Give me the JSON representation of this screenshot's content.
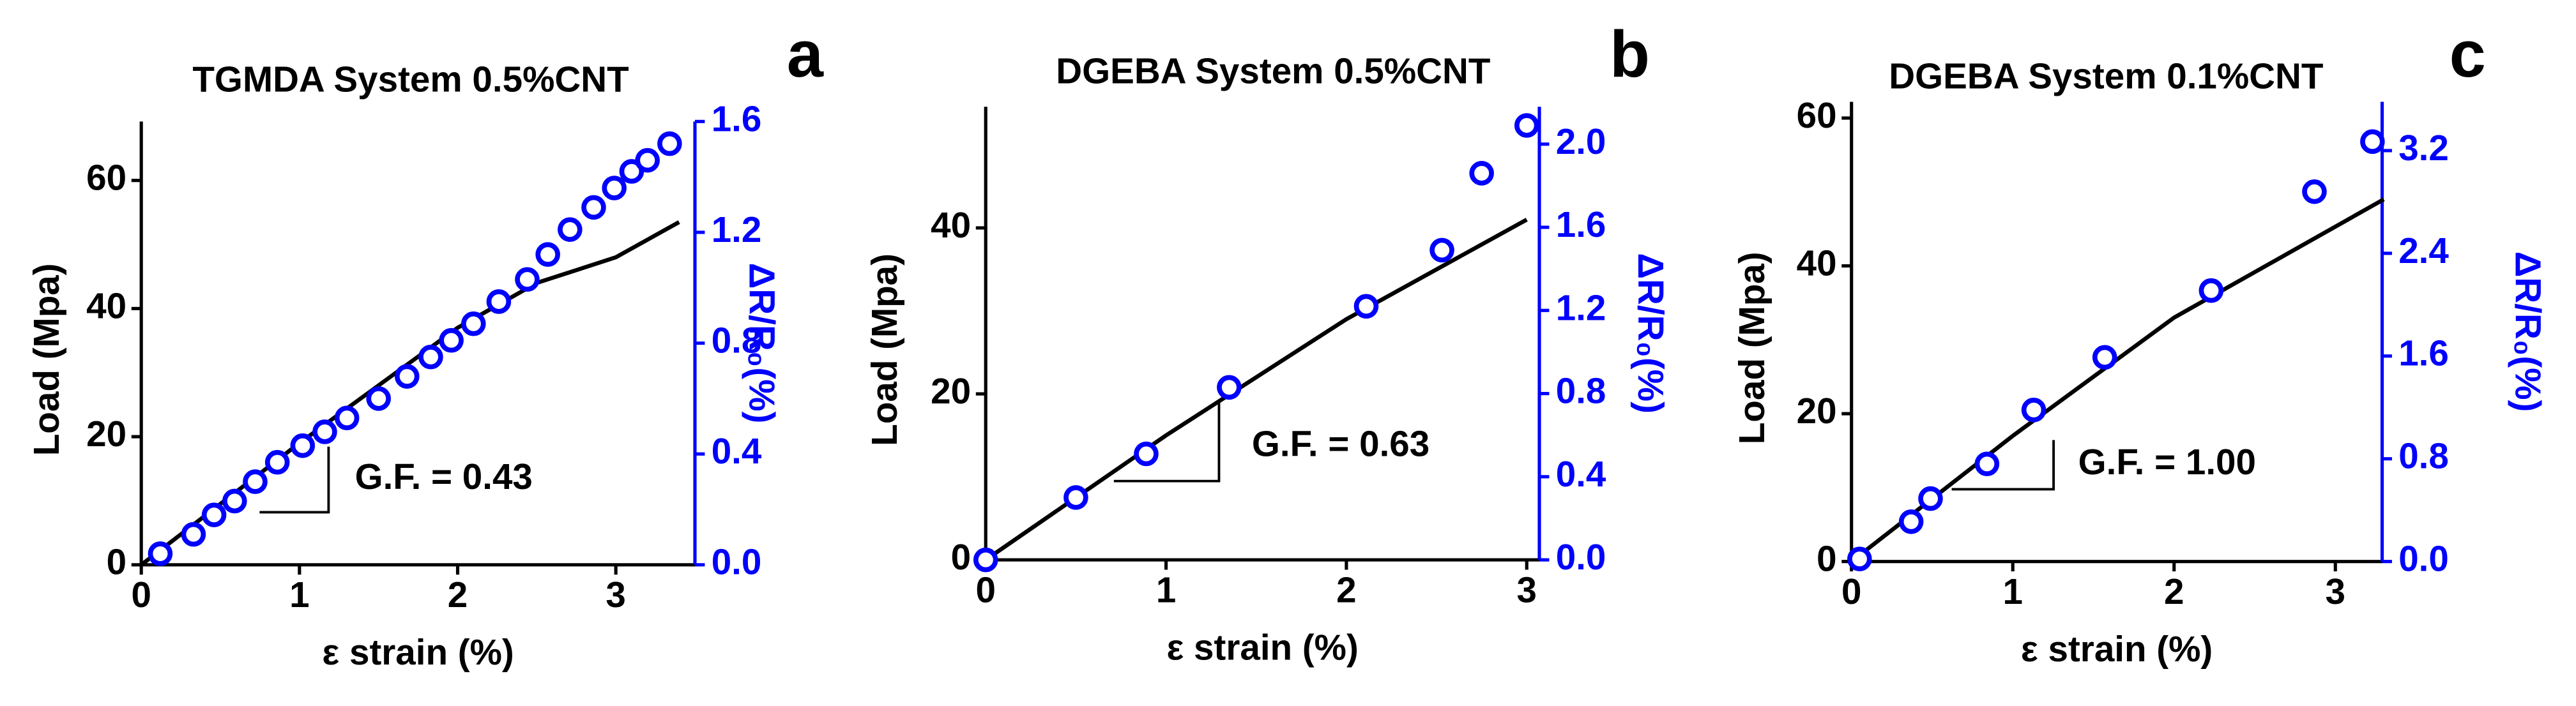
{
  "chart_data": [
    {
      "type": "line",
      "title": "TGMDA System 0.5%CNT",
      "panel_label": "a",
      "xlabel": "ε strain (%)",
      "ylabel": "Load (Mpa)",
      "y2label": "ΔR/R₀(%)",
      "annotation": "G.F. = 0.43",
      "xlim": [
        0,
        3.5
      ],
      "xticks": [
        0,
        1,
        2,
        3
      ],
      "ylim": [
        0,
        69.2
      ],
      "yticks": [
        0,
        20,
        40,
        60
      ],
      "y2lim": [
        0,
        1.6
      ],
      "y2ticks": [
        {
          "value": 0,
          "label": "0.0"
        },
        {
          "value": 0.4,
          "label": "0.4"
        },
        {
          "value": 0.8,
          "label": "0.8"
        },
        {
          "value": 1.2,
          "label": "1.2"
        },
        {
          "value": 1.6,
          "label": "1.6"
        }
      ],
      "series": [
        {
          "color": "#000000",
          "x": [
            0,
            0.5,
            1,
            1.5,
            2,
            2.5,
            3,
            3.4
          ],
          "values": [
            0,
            9.5,
            19,
            28,
            37,
            44,
            48,
            53.5
          ]
        },
        {
          "color": "#0000ff",
          "axis": "y2",
          "marker": "circle",
          "x": [
            0.12,
            0.33,
            0.46,
            0.59,
            0.72,
            0.86,
            1.02,
            1.16,
            1.3,
            1.5,
            1.68,
            1.83,
            1.96,
            2.1,
            2.26,
            2.44,
            2.57,
            2.71,
            2.86,
            2.99,
            3.1,
            3.2,
            3.34
          ],
          "values": [
            0.04,
            0.11,
            0.18,
            0.23,
            0.3,
            0.37,
            0.43,
            0.48,
            0.53,
            0.6,
            0.68,
            0.75,
            0.81,
            0.87,
            0.95,
            1.03,
            1.12,
            1.21,
            1.29,
            1.36,
            1.42,
            1.46,
            1.52
          ]
        }
      ]
    },
    {
      "type": "line",
      "title": "DGEBA System 0.5%CNT",
      "panel_label": "b",
      "xlabel": "ε strain (%)",
      "ylabel": "Load (Mpa)",
      "y2label": "ΔR/R₀(%)",
      "annotation": "G.F. = 0.63",
      "xlim": [
        0,
        3.07
      ],
      "xticks": [
        0,
        1,
        2,
        3
      ],
      "ylim": [
        0,
        54.6
      ],
      "yticks": [
        0,
        20,
        40
      ],
      "y2lim": [
        0,
        2.18
      ],
      "y2ticks": [
        {
          "value": 0,
          "label": "0.0"
        },
        {
          "value": 0.4,
          "label": "0.4"
        },
        {
          "value": 0.8,
          "label": "0.8"
        },
        {
          "value": 1.2,
          "label": "1.2"
        },
        {
          "value": 1.6,
          "label": "1.6"
        },
        {
          "value": 2,
          "label": "2.0"
        }
      ],
      "series": [
        {
          "color": "#000000",
          "x": [
            0,
            1,
            2,
            3
          ],
          "values": [
            0,
            15,
            29,
            41
          ]
        },
        {
          "color": "#0000ff",
          "axis": "y2",
          "marker": "circle",
          "x": [
            0,
            0.5,
            0.89,
            1.35,
            2.11,
            2.53,
            2.75,
            3.0
          ],
          "values": [
            0,
            0.3,
            0.51,
            0.83,
            1.22,
            1.49,
            1.86,
            2.09
          ]
        }
      ]
    },
    {
      "type": "line",
      "title": "DGEBA System 0.1%CNT",
      "panel_label": "c",
      "xlabel": "ε strain (%)",
      "ylabel": "Load (Mpa)",
      "y2label": "ΔR/R₀(%)",
      "annotation": "G.F. = 1.00",
      "xlim": [
        0,
        3.29
      ],
      "xticks": [
        0,
        1,
        2,
        3
      ],
      "ylim": [
        0,
        62.2
      ],
      "yticks": [
        0,
        20,
        40,
        60
      ],
      "y2lim": [
        0,
        3.58
      ],
      "y2ticks": [
        {
          "value": 0,
          "label": "0.0"
        },
        {
          "value": 0.8,
          "label": "0.8"
        },
        {
          "value": 1.6,
          "label": "1.6"
        },
        {
          "value": 2.4,
          "label": "2.4"
        },
        {
          "value": 3.2,
          "label": "3.2"
        }
      ],
      "series": [
        {
          "color": "#000000",
          "x": [
            0,
            1,
            2,
            3.3
          ],
          "values": [
            0,
            17,
            33,
            49
          ]
        },
        {
          "color": "#0000ff",
          "axis": "y2",
          "marker": "circle",
          "x": [
            0.05,
            0.37,
            0.49,
            0.84,
            1.13,
            1.57,
            2.23,
            2.87,
            3.23
          ],
          "values": [
            0.02,
            0.31,
            0.49,
            0.76,
            1.18,
            1.59,
            2.11,
            2.88,
            3.27
          ]
        }
      ]
    }
  ]
}
